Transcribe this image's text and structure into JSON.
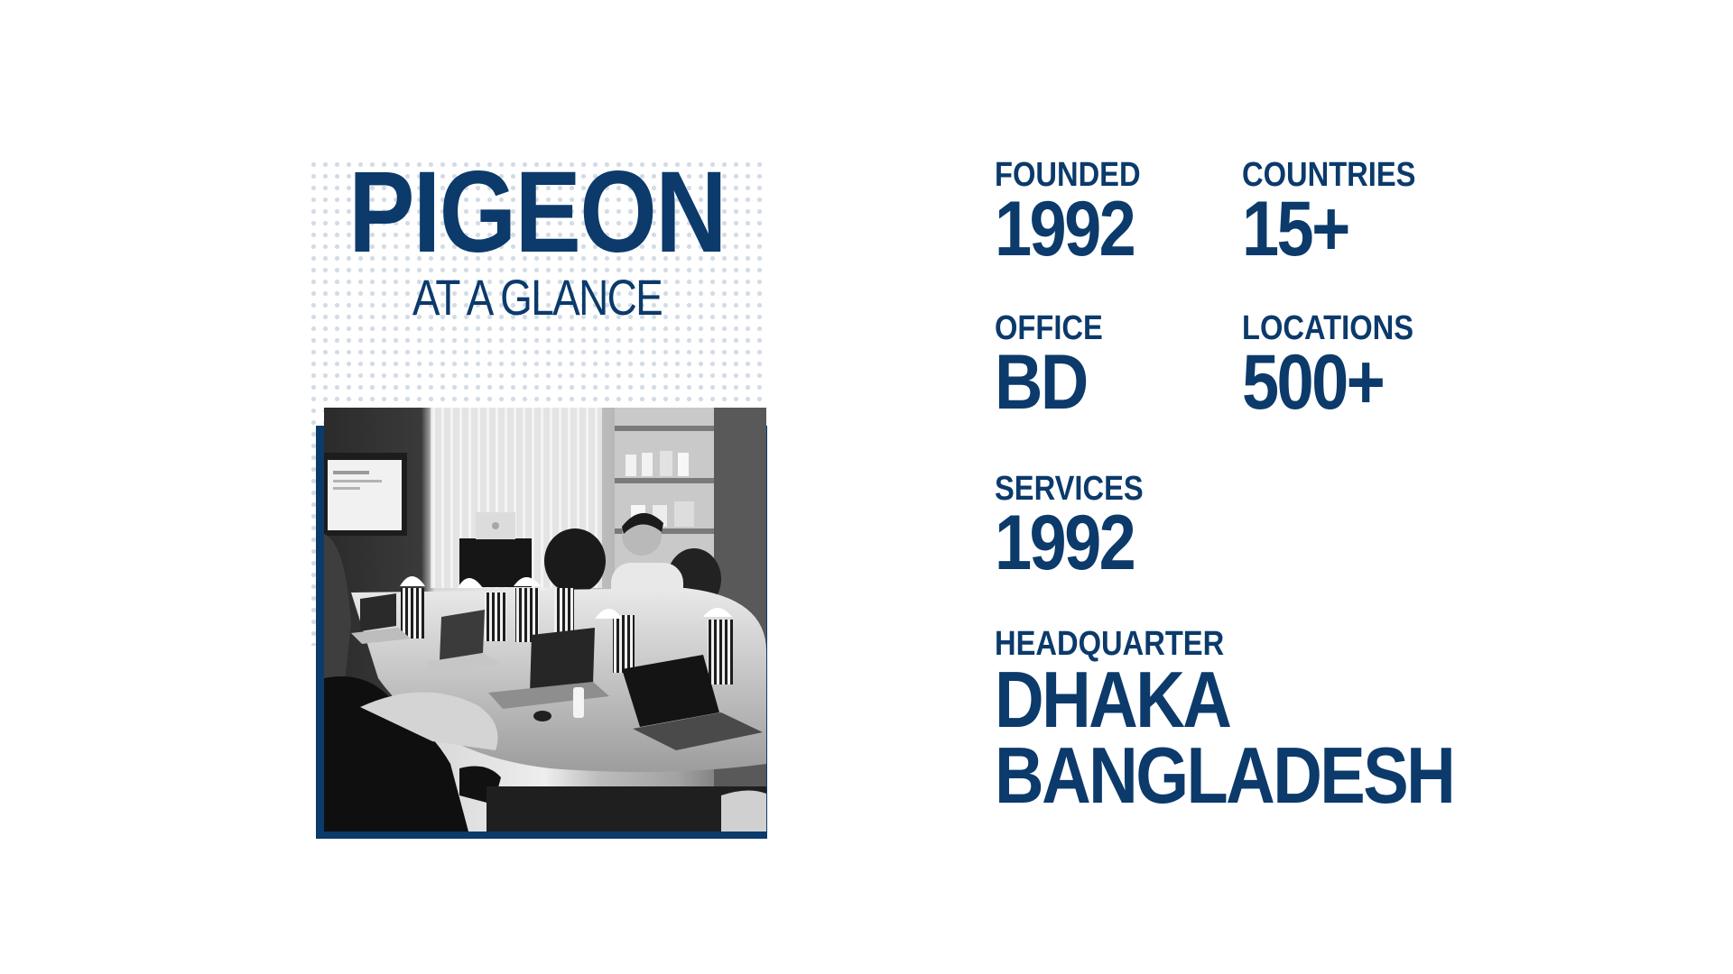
{
  "title": {
    "main": "PIGEON",
    "sub": "AT A GLANCE"
  },
  "stats": {
    "founded": {
      "label": "FOUNDED",
      "value": "1992"
    },
    "countries": {
      "label": "COUNTRIES",
      "value": "15+"
    },
    "office": {
      "label": "OFFICE",
      "value": "BD"
    },
    "locations": {
      "label": "LOCATIONS",
      "value": "500+"
    },
    "services": {
      "label": "SERVICES",
      "value": "1992"
    },
    "headquarter": {
      "label": "HEADQUARTER",
      "line1": "DHAKA",
      "line2": "BANGLADESH"
    }
  },
  "colors": {
    "brand": "#0b3a6b",
    "dots": "#d3dbe6",
    "background": "#ffffff"
  }
}
